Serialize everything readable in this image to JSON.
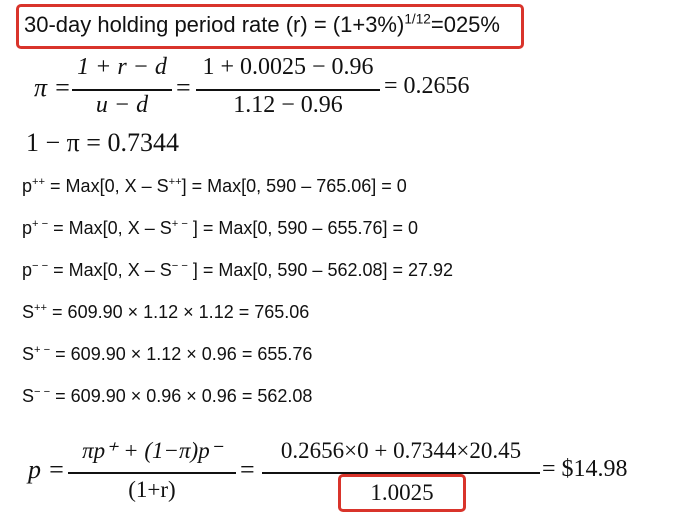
{
  "header": {
    "text": "30-day holding period rate (r) = (1+3%)",
    "exponent": "1/12",
    "tail": "=025%",
    "highlight_color": "#d9342b"
  },
  "pi_formula": {
    "lhs": "π =",
    "num": "1 + r − d",
    "den": "u − d",
    "eq1": "=",
    "num2": "1 + 0.0025 − 0.96",
    "den2": "1.12 − 0.96",
    "result": "= 0.2656"
  },
  "one_minus_pi": "1 − π = 0.7344",
  "payoffs": [
    {
      "label": "p",
      "sup": "++",
      "text": " = Max[0, X – S",
      "sup2": "++",
      "tail": "] = Max[0, 590 – 765.06] = 0"
    },
    {
      "label": "p",
      "sup": "+ −",
      "text": " = Max[0, X – S",
      "sup2": "+ −",
      "tail": " ] = Max[0, 590 – 655.76] = 0"
    },
    {
      "label": "p",
      "sup": "− −",
      "text": " = Max[0, X – S",
      "sup2": "− −",
      "tail": " ] = Max[0, 590 – 562.08] = 27.92"
    }
  ],
  "stock_prices": [
    {
      "label": "S",
      "sup": "++",
      "tail": " = 609.90 × 1.12 × 1.12 = 765.06"
    },
    {
      "label": "S",
      "sup": "+ −",
      "tail": " = 609.90 × 1.12 × 0.96 = 655.76"
    },
    {
      "label": "S",
      "sup": "− −",
      "tail": " = 609.90 × 0.96 × 0.96 = 562.08"
    }
  ],
  "final": {
    "lhs": "p =",
    "num": "πp⁺ + (1−π)p⁻",
    "den": "(1+r)",
    "eq": "=",
    "num2": "0.2656×0 + 0.7344×20.45",
    "den2": "1.0025",
    "result": "= $14.98"
  }
}
